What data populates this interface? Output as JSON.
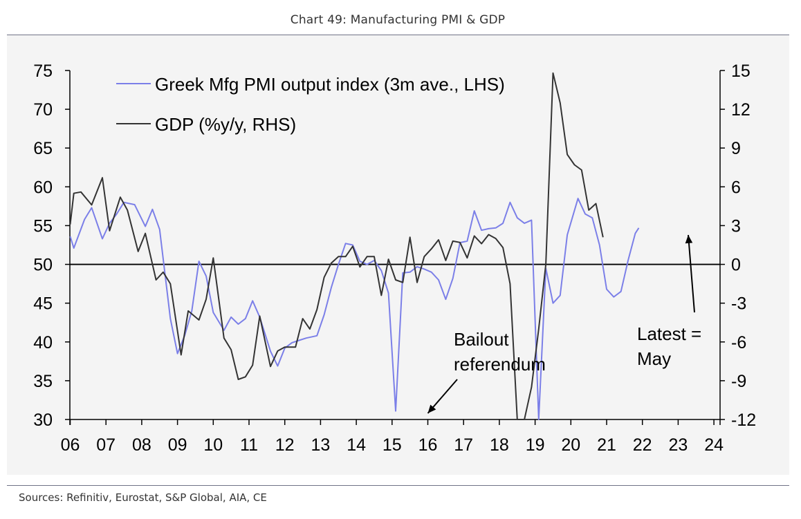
{
  "header": {
    "title": "Chart 49: Manufacturing PMI & GDP"
  },
  "footer": {
    "sources": "Sources: Refinitiv, Eurostat, S&P Global, AIA,  CE"
  },
  "colors": {
    "pmi": "#7b7fe8",
    "gdp": "#333333",
    "rule": "#6f7286",
    "panel": "#f4f4f4"
  },
  "chart_data": {
    "type": "line",
    "legend_position": "top-left",
    "x_ticks": [
      "06",
      "07",
      "08",
      "09",
      "10",
      "11",
      "12",
      "13",
      "14",
      "15",
      "16",
      "17",
      "18",
      "19",
      "20",
      "21",
      "22",
      "23",
      "24"
    ],
    "x_range": [
      2006,
      2024
    ],
    "y_left_ticks": [
      "75",
      "70",
      "65",
      "60",
      "55",
      "50",
      "45",
      "40",
      "35",
      "30"
    ],
    "y_left_range": [
      30,
      75
    ],
    "y_right_ticks": [
      "15",
      "12",
      "9",
      "6",
      "3",
      "0",
      "-3",
      "-6",
      "-9",
      "-12"
    ],
    "y_right_range": [
      -12,
      15
    ],
    "reference_line": {
      "axis": "left",
      "value": 50
    },
    "series": [
      {
        "name": "Greek Mfg PMI output index (3m ave., LHS)",
        "axis": "left",
        "points": [
          [
            2006.0,
            53.6
          ],
          [
            2006.1,
            52.1
          ],
          [
            2006.4,
            55.8
          ],
          [
            2006.6,
            57.3
          ],
          [
            2006.9,
            53.3
          ],
          [
            2007.1,
            55.3
          ],
          [
            2007.3,
            56.5
          ],
          [
            2007.5,
            58.0
          ],
          [
            2007.8,
            57.7
          ],
          [
            2008.1,
            54.9
          ],
          [
            2008.3,
            57.1
          ],
          [
            2008.5,
            54.5
          ],
          [
            2008.8,
            43.0
          ],
          [
            2009.0,
            38.5
          ],
          [
            2009.2,
            40.8
          ],
          [
            2009.4,
            44.0
          ],
          [
            2009.6,
            50.4
          ],
          [
            2009.8,
            48.5
          ],
          [
            2010.0,
            43.8
          ],
          [
            2010.3,
            41.5
          ],
          [
            2010.5,
            43.2
          ],
          [
            2010.7,
            42.3
          ],
          [
            2010.9,
            43.0
          ],
          [
            2011.1,
            45.3
          ],
          [
            2011.3,
            43.2
          ],
          [
            2011.6,
            38.8
          ],
          [
            2011.8,
            36.9
          ],
          [
            2012.0,
            39.2
          ],
          [
            2012.2,
            39.9
          ],
          [
            2012.4,
            40.2
          ],
          [
            2012.6,
            40.5
          ],
          [
            2012.9,
            40.8
          ],
          [
            2013.1,
            43.5
          ],
          [
            2013.3,
            47.0
          ],
          [
            2013.5,
            50.0
          ],
          [
            2013.7,
            52.7
          ],
          [
            2013.9,
            52.5
          ],
          [
            2014.1,
            50.4
          ],
          [
            2014.3,
            50.0
          ],
          [
            2014.5,
            50.5
          ],
          [
            2014.7,
            49.2
          ],
          [
            2014.9,
            46.3
          ],
          [
            2015.1,
            31.1
          ],
          [
            2015.3,
            48.9
          ],
          [
            2015.5,
            49.0
          ],
          [
            2015.7,
            49.7
          ],
          [
            2015.9,
            49.4
          ],
          [
            2016.1,
            49.0
          ],
          [
            2016.3,
            48.0
          ],
          [
            2016.5,
            45.5
          ],
          [
            2016.7,
            48.2
          ],
          [
            2016.9,
            52.8
          ],
          [
            2017.1,
            53.0
          ],
          [
            2017.3,
            56.9
          ],
          [
            2017.5,
            54.4
          ],
          [
            2017.7,
            54.6
          ],
          [
            2017.9,
            54.7
          ],
          [
            2018.1,
            55.3
          ],
          [
            2018.3,
            58.0
          ],
          [
            2018.5,
            56.0
          ],
          [
            2018.7,
            55.3
          ],
          [
            2018.9,
            55.7
          ],
          [
            2019.1,
            30.0
          ],
          [
            2019.3,
            49.5
          ],
          [
            2019.5,
            45.0
          ],
          [
            2019.7,
            46.0
          ],
          [
            2019.9,
            53.8
          ],
          [
            2020.2,
            58.5
          ],
          [
            2020.4,
            56.5
          ],
          [
            2020.6,
            56.0
          ],
          [
            2020.8,
            52.5
          ],
          [
            2021.0,
            46.8
          ],
          [
            2021.2,
            45.8
          ],
          [
            2021.4,
            46.5
          ],
          [
            2021.6,
            50.5
          ],
          [
            2021.8,
            54.0
          ],
          [
            2021.9,
            54.7
          ]
        ]
      },
      {
        "name": "GDP (%y/y, RHS)",
        "axis": "right",
        "points": [
          [
            2006.0,
            3.1
          ],
          [
            2006.1,
            5.5
          ],
          [
            2006.3,
            5.6
          ],
          [
            2006.6,
            4.6
          ],
          [
            2006.9,
            6.7
          ],
          [
            2007.1,
            2.6
          ],
          [
            2007.4,
            5.2
          ],
          [
            2007.6,
            4.2
          ],
          [
            2007.9,
            1.0
          ],
          [
            2008.1,
            2.4
          ],
          [
            2008.4,
            -1.2
          ],
          [
            2008.6,
            -0.6
          ],
          [
            2008.8,
            -1.5
          ],
          [
            2009.1,
            -7.0
          ],
          [
            2009.3,
            -3.6
          ],
          [
            2009.6,
            -4.3
          ],
          [
            2009.8,
            -2.7
          ],
          [
            2010.0,
            0.5
          ],
          [
            2010.3,
            -5.7
          ],
          [
            2010.5,
            -6.6
          ],
          [
            2010.7,
            -8.9
          ],
          [
            2010.9,
            -8.7
          ],
          [
            2011.1,
            -7.8
          ],
          [
            2011.3,
            -4.0
          ],
          [
            2011.6,
            -7.9
          ],
          [
            2011.8,
            -6.7
          ],
          [
            2012.0,
            -6.4
          ],
          [
            2012.3,
            -6.4
          ],
          [
            2012.5,
            -4.2
          ],
          [
            2012.7,
            -5.0
          ],
          [
            2012.9,
            -3.5
          ],
          [
            2013.1,
            -1.0
          ],
          [
            2013.3,
            0.1
          ],
          [
            2013.5,
            0.6
          ],
          [
            2013.7,
            0.6
          ],
          [
            2013.9,
            1.4
          ],
          [
            2014.1,
            -0.2
          ],
          [
            2014.3,
            0.6
          ],
          [
            2014.5,
            0.6
          ],
          [
            2014.7,
            -2.4
          ],
          [
            2014.9,
            0.4
          ],
          [
            2015.1,
            -1.2
          ],
          [
            2015.3,
            -1.4
          ],
          [
            2015.5,
            2.1
          ],
          [
            2015.7,
            -1.4
          ],
          [
            2015.9,
            0.6
          ],
          [
            2016.1,
            1.2
          ],
          [
            2016.3,
            1.9
          ],
          [
            2016.5,
            0.3
          ],
          [
            2016.7,
            1.8
          ],
          [
            2016.9,
            1.7
          ],
          [
            2017.1,
            0.5
          ],
          [
            2017.3,
            2.2
          ],
          [
            2017.5,
            1.6
          ],
          [
            2017.7,
            2.3
          ],
          [
            2017.9,
            2.0
          ],
          [
            2018.1,
            1.3
          ],
          [
            2018.3,
            -1.5
          ],
          [
            2018.5,
            -12.0
          ],
          [
            2018.7,
            -12.0
          ],
          [
            2018.9,
            -9.5
          ],
          [
            2019.1,
            -5.0
          ],
          [
            2019.3,
            0.0
          ],
          [
            2019.5,
            14.8
          ],
          [
            2019.7,
            12.5
          ],
          [
            2019.9,
            8.5
          ],
          [
            2020.1,
            7.7
          ],
          [
            2020.3,
            7.3
          ],
          [
            2020.5,
            4.2
          ],
          [
            2020.7,
            4.7
          ],
          [
            2020.9,
            2.1
          ]
        ]
      }
    ],
    "annotations": [
      {
        "id": "bailout",
        "lines": [
          "Bailout",
          "referendum"
        ],
        "arrow_to": [
          2016.0,
          30.8
        ]
      },
      {
        "id": "latest",
        "lines": [
          "Latest =",
          "May"
        ],
        "arrow_to": [
          2023.5,
          53.8
        ]
      }
    ]
  }
}
